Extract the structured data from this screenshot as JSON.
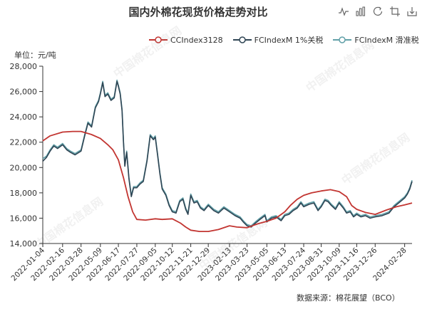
{
  "title": "国内外棉花现货价格走势对比",
  "unit_label": "单位：元/吨",
  "source_label": "数据来源：棉花展望（BCO）",
  "watermark_text": "中国棉花信息网",
  "toolbox": [
    {
      "name": "line-switch-icon"
    },
    {
      "name": "bar-switch-icon"
    },
    {
      "name": "restore-icon"
    },
    {
      "name": "crop-icon"
    },
    {
      "name": "download-icon"
    }
  ],
  "legend": [
    {
      "label": "CCIndex3128",
      "color": "#c23531"
    },
    {
      "label": "FCIndexM 1%关税",
      "color": "#2f4554"
    },
    {
      "label": "FCIndexM 滑准税",
      "color": "#61a0a8"
    }
  ],
  "chart_data": {
    "type": "line",
    "title": "国内外棉花现货价格走势对比",
    "ylabel": "单位：元/吨",
    "ylim": [
      14000,
      28000
    ],
    "yticks": [
      14000,
      16000,
      18000,
      20000,
      22000,
      24000,
      26000,
      28000
    ],
    "ytick_labels": [
      "14,000",
      "16,000",
      "18,000",
      "20,000",
      "22,000",
      "24,000",
      "26,000",
      "28,000"
    ],
    "xlim": [
      "2022-01-04",
      "2024-03-15"
    ],
    "xtick_labels": [
      "2022-01-04",
      "2022-02-16",
      "2022-03-28",
      "2022-05-09",
      "2022-06-17",
      "2022-07-27",
      "2022-09-05",
      "2022-10-12",
      "2022-11-21",
      "2022-12-29",
      "2023-02-13",
      "2023-03-23",
      "2023-05-05",
      "2023-06-13",
      "2023-07-24",
      "2023-08-31",
      "2023-10-09",
      "2023-11-16",
      "2023-12-26",
      "2024-02-28"
    ],
    "grid": false,
    "legend_position": "top",
    "series": [
      {
        "name": "CCIndex3128",
        "color": "#c23531",
        "points": [
          [
            "2022-01-04",
            22100
          ],
          [
            "2022-01-20",
            22500
          ],
          [
            "2022-02-16",
            22800
          ],
          [
            "2022-03-10",
            22850
          ],
          [
            "2022-03-28",
            22850
          ],
          [
            "2022-04-20",
            22600
          ],
          [
            "2022-05-09",
            22300
          ],
          [
            "2022-05-25",
            21800
          ],
          [
            "2022-06-05",
            21400
          ],
          [
            "2022-06-17",
            20600
          ],
          [
            "2022-06-28",
            19200
          ],
          [
            "2022-07-08",
            17700
          ],
          [
            "2022-07-18",
            16500
          ],
          [
            "2022-07-27",
            15900
          ],
          [
            "2022-08-15",
            15850
          ],
          [
            "2022-09-05",
            15950
          ],
          [
            "2022-09-20",
            15900
          ],
          [
            "2022-10-12",
            15950
          ],
          [
            "2022-10-30",
            15600
          ],
          [
            "2022-11-10",
            15300
          ],
          [
            "2022-11-21",
            15050
          ],
          [
            "2022-12-10",
            14950
          ],
          [
            "2022-12-29",
            14950
          ],
          [
            "2023-01-20",
            15100
          ],
          [
            "2023-02-13",
            15400
          ],
          [
            "2023-03-01",
            15300
          ],
          [
            "2023-03-23",
            15250
          ],
          [
            "2023-04-15",
            15550
          ],
          [
            "2023-05-05",
            15750
          ],
          [
            "2023-05-25",
            16000
          ],
          [
            "2023-06-13",
            16500
          ],
          [
            "2023-06-25",
            17000
          ],
          [
            "2023-07-10",
            17500
          ],
          [
            "2023-07-24",
            17800
          ],
          [
            "2023-08-10",
            18000
          ],
          [
            "2023-08-31",
            18150
          ],
          [
            "2023-09-20",
            18250
          ],
          [
            "2023-10-09",
            18100
          ],
          [
            "2023-10-25",
            17700
          ],
          [
            "2023-11-05",
            17000
          ],
          [
            "2023-11-16",
            16700
          ],
          [
            "2023-12-05",
            16450
          ],
          [
            "2023-12-26",
            16300
          ],
          [
            "2024-01-20",
            16650
          ],
          [
            "2024-02-10",
            16900
          ],
          [
            "2024-02-28",
            17050
          ],
          [
            "2024-03-15",
            17200
          ]
        ]
      },
      {
        "name": "FCIndexM 1%关税",
        "color": "#2f4554",
        "points": [
          [
            "2022-01-04",
            20500
          ],
          [
            "2022-01-12",
            20800
          ],
          [
            "2022-01-20",
            21300
          ],
          [
            "2022-01-28",
            21700
          ],
          [
            "2022-02-05",
            21500
          ],
          [
            "2022-02-16",
            21800
          ],
          [
            "2022-02-25",
            21400
          ],
          [
            "2022-03-05",
            21200
          ],
          [
            "2022-03-15",
            21000
          ],
          [
            "2022-03-28",
            21300
          ],
          [
            "2022-04-05",
            22500
          ],
          [
            "2022-04-12",
            23500
          ],
          [
            "2022-04-20",
            23200
          ],
          [
            "2022-04-28",
            24700
          ],
          [
            "2022-05-05",
            25200
          ],
          [
            "2022-05-09",
            25800
          ],
          [
            "2022-05-14",
            26700
          ],
          [
            "2022-05-19",
            25600
          ],
          [
            "2022-05-25",
            25800
          ],
          [
            "2022-06-01",
            25300
          ],
          [
            "2022-06-08",
            25500
          ],
          [
            "2022-06-14",
            26800
          ],
          [
            "2022-06-17",
            26400
          ],
          [
            "2022-06-21",
            25800
          ],
          [
            "2022-06-25",
            24500
          ],
          [
            "2022-06-28",
            22000
          ],
          [
            "2022-07-01",
            20100
          ],
          [
            "2022-07-05",
            21200
          ],
          [
            "2022-07-10",
            19100
          ],
          [
            "2022-07-15",
            17700
          ],
          [
            "2022-07-20",
            18400
          ],
          [
            "2022-07-27",
            18400
          ],
          [
            "2022-08-03",
            18700
          ],
          [
            "2022-08-10",
            18900
          ],
          [
            "2022-08-18",
            20500
          ],
          [
            "2022-08-25",
            22500
          ],
          [
            "2022-09-01",
            22200
          ],
          [
            "2022-09-05",
            22400
          ],
          [
            "2022-09-10",
            21000
          ],
          [
            "2022-09-15",
            19500
          ],
          [
            "2022-09-20",
            18300
          ],
          [
            "2022-09-28",
            17800
          ],
          [
            "2022-10-05",
            17000
          ],
          [
            "2022-10-12",
            16500
          ],
          [
            "2022-10-20",
            16400
          ],
          [
            "2022-10-28",
            17300
          ],
          [
            "2022-11-04",
            17500
          ],
          [
            "2022-11-10",
            16700
          ],
          [
            "2022-11-15",
            16300
          ],
          [
            "2022-11-21",
            17800
          ],
          [
            "2022-11-28",
            17200
          ],
          [
            "2022-12-05",
            17300
          ],
          [
            "2022-12-12",
            16800
          ],
          [
            "2022-12-20",
            16600
          ],
          [
            "2022-12-29",
            17000
          ],
          [
            "2023-01-10",
            16600
          ],
          [
            "2023-01-20",
            16400
          ],
          [
            "2023-02-01",
            16800
          ],
          [
            "2023-02-13",
            16500
          ],
          [
            "2023-02-25",
            16200
          ],
          [
            "2023-03-08",
            16000
          ],
          [
            "2023-03-15",
            15700
          ],
          [
            "2023-03-23",
            15400
          ],
          [
            "2023-04-01",
            15300
          ],
          [
            "2023-04-10",
            15600
          ],
          [
            "2023-04-20",
            15900
          ],
          [
            "2023-05-01",
            16200
          ],
          [
            "2023-05-05",
            15700
          ],
          [
            "2023-05-15",
            16000
          ],
          [
            "2023-05-25",
            16100
          ],
          [
            "2023-06-05",
            15800
          ],
          [
            "2023-06-13",
            16200
          ],
          [
            "2023-06-22",
            16300
          ],
          [
            "2023-07-01",
            16600
          ],
          [
            "2023-07-10",
            16800
          ],
          [
            "2023-07-18",
            17200
          ],
          [
            "2023-07-24",
            16900
          ],
          [
            "2023-08-05",
            17100
          ],
          [
            "2023-08-15",
            17200
          ],
          [
            "2023-08-24",
            16600
          ],
          [
            "2023-08-31",
            16900
          ],
          [
            "2023-09-08",
            17400
          ],
          [
            "2023-09-15",
            17300
          ],
          [
            "2023-09-22",
            17000
          ],
          [
            "2023-10-01",
            16700
          ],
          [
            "2023-10-09",
            17200
          ],
          [
            "2023-10-18",
            16800
          ],
          [
            "2023-10-25",
            16400
          ],
          [
            "2023-11-02",
            16500
          ],
          [
            "2023-11-09",
            16100
          ],
          [
            "2023-11-16",
            16300
          ],
          [
            "2023-11-25",
            16100
          ],
          [
            "2023-12-05",
            16200
          ],
          [
            "2023-12-15",
            16000
          ],
          [
            "2023-12-26",
            16100
          ],
          [
            "2024-01-10",
            16200
          ],
          [
            "2024-01-25",
            16400
          ],
          [
            "2024-02-05",
            16900
          ],
          [
            "2024-02-15",
            17200
          ],
          [
            "2024-02-28",
            17600
          ],
          [
            "2024-03-05",
            17900
          ],
          [
            "2024-03-10",
            18300
          ],
          [
            "2024-03-15",
            18900
          ]
        ]
      },
      {
        "name": "FCIndexM 滑准税",
        "color": "#61a0a8",
        "points": [
          [
            "2022-01-04",
            20700
          ],
          [
            "2022-01-12",
            20900
          ],
          [
            "2022-01-20",
            21400
          ],
          [
            "2022-01-28",
            21800
          ],
          [
            "2022-02-05",
            21600
          ],
          [
            "2022-02-16",
            21900
          ],
          [
            "2022-02-25",
            21500
          ],
          [
            "2022-03-05",
            21300
          ],
          [
            "2022-03-15",
            21100
          ],
          [
            "2022-03-28",
            21400
          ],
          [
            "2022-04-05",
            22600
          ],
          [
            "2022-04-12",
            23600
          ],
          [
            "2022-04-20",
            23300
          ],
          [
            "2022-04-28",
            24800
          ],
          [
            "2022-05-05",
            25300
          ],
          [
            "2022-05-09",
            25900
          ],
          [
            "2022-05-14",
            26800
          ],
          [
            "2022-05-19",
            25700
          ],
          [
            "2022-05-25",
            25900
          ],
          [
            "2022-06-01",
            25400
          ],
          [
            "2022-06-08",
            25600
          ],
          [
            "2022-06-14",
            26900
          ],
          [
            "2022-06-17",
            26500
          ],
          [
            "2022-06-21",
            25900
          ],
          [
            "2022-06-25",
            24600
          ],
          [
            "2022-06-28",
            22100
          ],
          [
            "2022-07-01",
            20200
          ],
          [
            "2022-07-05",
            21300
          ],
          [
            "2022-07-10",
            19200
          ],
          [
            "2022-07-15",
            17800
          ],
          [
            "2022-07-20",
            18500
          ],
          [
            "2022-07-27",
            18500
          ],
          [
            "2022-08-03",
            18800
          ],
          [
            "2022-08-10",
            19000
          ],
          [
            "2022-08-18",
            20600
          ],
          [
            "2022-08-25",
            22600
          ],
          [
            "2022-09-01",
            22300
          ],
          [
            "2022-09-05",
            22500
          ],
          [
            "2022-09-10",
            21100
          ],
          [
            "2022-09-15",
            19600
          ],
          [
            "2022-09-20",
            18400
          ],
          [
            "2022-09-28",
            17900
          ],
          [
            "2022-10-05",
            17100
          ],
          [
            "2022-10-12",
            16600
          ],
          [
            "2022-10-20",
            16500
          ],
          [
            "2022-10-28",
            17400
          ],
          [
            "2022-11-04",
            17600
          ],
          [
            "2022-11-10",
            16800
          ],
          [
            "2022-11-15",
            16400
          ],
          [
            "2022-11-21",
            17900
          ],
          [
            "2022-11-28",
            17300
          ],
          [
            "2022-12-05",
            17400
          ],
          [
            "2022-12-12",
            16900
          ],
          [
            "2022-12-20",
            16700
          ],
          [
            "2022-12-29",
            17100
          ],
          [
            "2023-01-10",
            16700
          ],
          [
            "2023-01-20",
            16500
          ],
          [
            "2023-02-01",
            16900
          ],
          [
            "2023-02-13",
            16600
          ],
          [
            "2023-02-25",
            16300
          ],
          [
            "2023-03-08",
            16100
          ],
          [
            "2023-03-15",
            15800
          ],
          [
            "2023-03-23",
            15500
          ],
          [
            "2023-04-01",
            15400
          ],
          [
            "2023-04-10",
            15700
          ],
          [
            "2023-04-20",
            16000
          ],
          [
            "2023-05-01",
            16300
          ],
          [
            "2023-05-05",
            15800
          ],
          [
            "2023-05-15",
            16100
          ],
          [
            "2023-05-25",
            16200
          ],
          [
            "2023-06-05",
            15900
          ],
          [
            "2023-06-13",
            16300
          ],
          [
            "2023-06-22",
            16400
          ],
          [
            "2023-07-01",
            16700
          ],
          [
            "2023-07-10",
            16900
          ],
          [
            "2023-07-18",
            17300
          ],
          [
            "2023-07-24",
            17000
          ],
          [
            "2023-08-05",
            17200
          ],
          [
            "2023-08-15",
            17300
          ],
          [
            "2023-08-24",
            16700
          ],
          [
            "2023-08-31",
            17000
          ],
          [
            "2023-09-08",
            17500
          ],
          [
            "2023-09-15",
            17400
          ],
          [
            "2023-09-22",
            17100
          ],
          [
            "2023-10-01",
            16800
          ],
          [
            "2023-10-09",
            17300
          ],
          [
            "2023-10-18",
            16900
          ],
          [
            "2023-10-25",
            16500
          ],
          [
            "2023-11-02",
            16600
          ],
          [
            "2023-11-09",
            16200
          ],
          [
            "2023-11-16",
            16400
          ],
          [
            "2023-11-25",
            16200
          ],
          [
            "2023-12-05",
            16300
          ],
          [
            "2023-12-15",
            16100
          ],
          [
            "2023-12-26",
            16200
          ],
          [
            "2024-01-10",
            16300
          ],
          [
            "2024-01-25",
            16500
          ],
          [
            "2024-02-05",
            17000
          ],
          [
            "2024-02-15",
            17300
          ],
          [
            "2024-02-28",
            17700
          ],
          [
            "2024-03-05",
            18000
          ],
          [
            "2024-03-10",
            18400
          ],
          [
            "2024-03-15",
            19000
          ]
        ]
      }
    ]
  }
}
